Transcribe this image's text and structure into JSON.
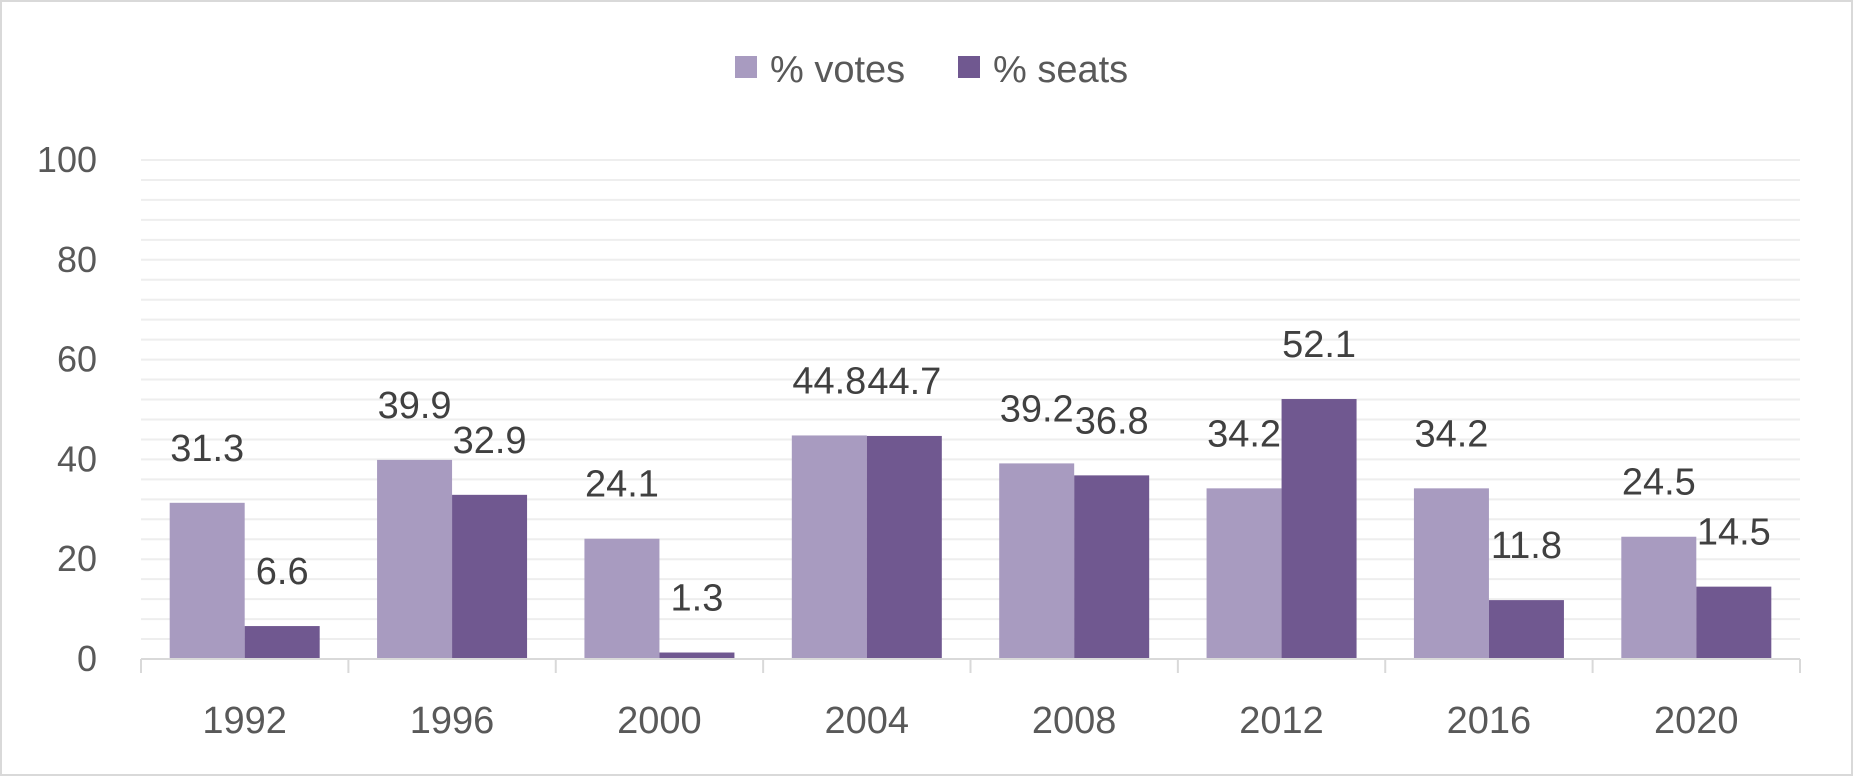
{
  "colors": {
    "votes": "#a89bc0",
    "seats": "#705890",
    "grid": "#eeeeee",
    "axis": "#d9d9d9"
  },
  "chart_data": {
    "type": "bar",
    "categories": [
      "1992",
      "1996",
      "2000",
      "2004",
      "2008",
      "2012",
      "2016",
      "2020"
    ],
    "series": [
      {
        "name": "% votes",
        "values": [
          31.3,
          39.9,
          24.1,
          44.8,
          39.2,
          34.2,
          34.2,
          24.5
        ]
      },
      {
        "name": "% seats",
        "values": [
          6.6,
          32.9,
          1.3,
          44.7,
          36.8,
          52.1,
          11.8,
          14.5
        ]
      }
    ],
    "yticks": [
      "0",
      "20",
      "40",
      "60",
      "80",
      "100"
    ],
    "ylim": [
      0,
      100
    ],
    "grid": true,
    "legend_position": "top-center",
    "data_labels": true
  }
}
